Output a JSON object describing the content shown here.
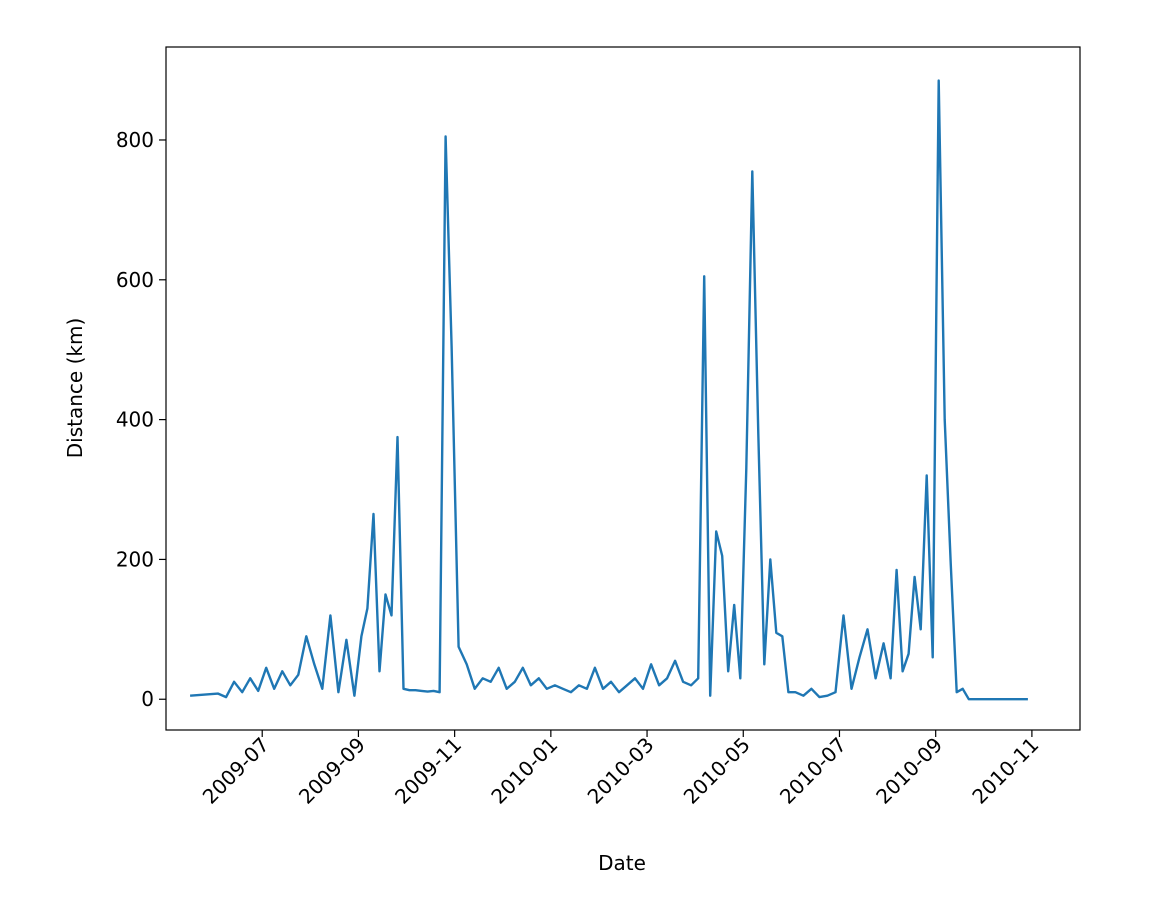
{
  "chart_data": {
    "type": "line",
    "xlabel": "Date",
    "ylabel": "Distance (km)",
    "x": [
      "2009-05",
      "2009-06",
      "2009-06",
      "2009-06",
      "2009-06",
      "2009-06",
      "2009-06",
      "2009-07",
      "2009-07",
      "2009-07",
      "2009-07",
      "2009-07",
      "2009-07",
      "2009-08",
      "2009-08",
      "2009-08",
      "2009-08",
      "2009-08",
      "2009-08",
      "2009-09",
      "2009-09",
      "2009-09",
      "2009-09",
      "2009-09",
      "2009-09",
      "2009-09",
      "2009-09",
      "2009-10",
      "2009-10",
      "2009-10",
      "2009-10",
      "2009-10",
      "2009-10",
      "2009-10",
      "2009-10",
      "2009-11",
      "2009-11",
      "2009-11",
      "2009-11",
      "2009-11",
      "2009-11",
      "2009-12",
      "2009-12",
      "2009-12",
      "2009-12",
      "2009-12",
      "2009-12",
      "2010-01",
      "2010-01",
      "2010-01",
      "2010-01",
      "2010-01",
      "2010-01",
      "2010-02",
      "2010-02",
      "2010-02",
      "2010-02",
      "2010-02",
      "2010-02",
      "2010-03",
      "2010-03",
      "2010-03",
      "2010-03",
      "2010-03",
      "2010-03",
      "2010-04",
      "2010-04",
      "2010-04",
      "2010-04",
      "2010-04",
      "2010-04",
      "2010-04",
      "2010-04",
      "2010-05",
      "2010-05",
      "2010-05",
      "2010-05",
      "2010-05",
      "2010-05",
      "2010-05",
      "2010-05",
      "2010-06",
      "2010-06",
      "2010-06",
      "2010-06",
      "2010-06",
      "2010-06",
      "2010-07",
      "2010-07",
      "2010-07",
      "2010-07",
      "2010-07",
      "2010-07",
      "2010-08",
      "2010-08",
      "2010-08",
      "2010-08",
      "2010-08",
      "2010-08",
      "2010-08",
      "2010-08",
      "2010-09",
      "2010-09",
      "2010-09",
      "2010-09",
      "2010-09",
      "2010-09",
      "2010-09",
      "2010-09",
      "2010-10",
      "2010-10",
      "2010-10",
      "2010-10",
      "2010-10",
      "2010-10"
    ],
    "series": [
      {
        "name": "Distance",
        "color": "#1f77b4",
        "values": [
          5,
          8,
          3,
          25,
          10,
          30,
          12,
          45,
          15,
          40,
          20,
          35,
          90,
          50,
          15,
          120,
          10,
          85,
          5,
          90,
          130,
          265,
          40,
          150,
          120,
          375,
          15,
          13,
          13,
          12,
          11,
          12,
          10,
          805,
          505,
          75,
          50,
          15,
          30,
          25,
          45,
          15,
          25,
          45,
          20,
          30,
          15,
          20,
          15,
          10,
          20,
          15,
          45,
          15,
          25,
          10,
          20,
          30,
          15,
          50,
          20,
          30,
          55,
          25,
          20,
          30,
          605,
          5,
          240,
          205,
          40,
          135,
          30,
          330,
          755,
          380,
          50,
          200,
          95,
          90,
          10,
          10,
          5,
          15,
          3,
          5,
          10,
          120,
          15,
          60,
          100,
          30,
          80,
          30,
          185,
          40,
          65,
          175,
          100,
          320,
          60,
          885,
          400,
          195,
          10,
          15,
          0,
          0,
          0,
          0,
          0,
          0,
          0,
          0,
          0
        ]
      }
    ],
    "xlim": [
      "2009-05",
      "2010-12"
    ],
    "xticks": [
      "2009-07",
      "2009-09",
      "2009-11",
      "2010-01",
      "2010-03",
      "2010-05",
      "2010-07",
      "2010-09",
      "2010-11"
    ],
    "ylim": [
      -44,
      933
    ],
    "yticks": [
      0,
      200,
      400,
      600,
      800
    ],
    "grid": false
  }
}
